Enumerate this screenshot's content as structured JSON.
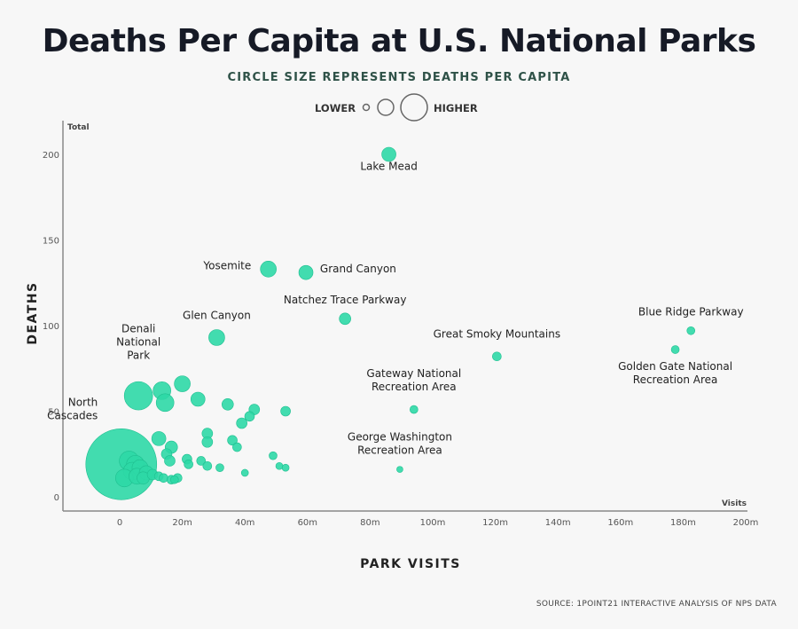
{
  "chart_data": {
    "type": "scatter",
    "title": "Deaths Per Capita at U.S. National Parks",
    "subtitle": "CIRCLE SIZE REPRESENTS DEATHS PER CAPITA",
    "legend": {
      "low": "LOWER",
      "high": "HIGHER"
    },
    "xlabel": "PARK VISITS",
    "ylabel": "DEATHS",
    "x_axis_unit_label": "Visits",
    "y_axis_unit_label": "Total",
    "xlim": [
      -18,
      200
    ],
    "ylim": [
      -8,
      218
    ],
    "x_ticks": [
      {
        "v": 0,
        "t": "0"
      },
      {
        "v": 20,
        "t": "20m"
      },
      {
        "v": 40,
        "t": "40m"
      },
      {
        "v": 60,
        "t": "60m"
      },
      {
        "v": 80,
        "t": "80m"
      },
      {
        "v": 100,
        "t": "100m"
      },
      {
        "v": 120,
        "t": "120m"
      },
      {
        "v": 140,
        "t": "140m"
      },
      {
        "v": 160,
        "t": "160m"
      },
      {
        "v": 180,
        "t": "180m"
      },
      {
        "v": 200,
        "t": "200m"
      }
    ],
    "y_ticks": [
      {
        "v": 0,
        "t": "0"
      },
      {
        "v": 50,
        "t": "50"
      },
      {
        "v": 100,
        "t": "100"
      },
      {
        "v": 150,
        "t": "150"
      },
      {
        "v": 200,
        "t": "200"
      }
    ],
    "color": "#2ed8a6",
    "points": [
      {
        "x": 86.0,
        "y": 200,
        "r": 8,
        "label": "Lake Mead",
        "lx": 86,
        "ly": 191,
        "anchor": "middle"
      },
      {
        "x": 47.5,
        "y": 133,
        "r": 9,
        "label": "Yosemite",
        "lx": 42,
        "ly": 133,
        "anchor": "end"
      },
      {
        "x": 59.5,
        "y": 131,
        "r": 8,
        "label": "Grand Canyon",
        "lx": 64,
        "ly": 131,
        "anchor": "start"
      },
      {
        "x": 72.0,
        "y": 104,
        "r": 6.5,
        "label": "Natchez Trace Parkway",
        "lx": 72,
        "ly": 113,
        "anchor": "middle"
      },
      {
        "x": 31.0,
        "y": 93,
        "r": 9,
        "label": "Glen Canyon",
        "lx": 31,
        "ly": 104,
        "anchor": "middle"
      },
      {
        "x": 120.5,
        "y": 82,
        "r": 5,
        "label": "Great Smoky Mountains",
        "lx": 120.5,
        "ly": 93,
        "anchor": "middle"
      },
      {
        "x": 182.5,
        "y": 97,
        "r": 4.5,
        "label": "Blue Ridge Parkway",
        "lx": 182.5,
        "ly": 106,
        "anchor": "middle"
      },
      {
        "x": 177.5,
        "y": 86,
        "r": 4.5,
        "label": "Golden Gate National|Recreation Area",
        "lx": 177.5,
        "ly": 74,
        "anchor": "middle"
      },
      {
        "x": 94.0,
        "y": 51,
        "r": 4.5,
        "label": "Gateway National|Recreation Area",
        "lx": 94,
        "ly": 70,
        "anchor": "middle"
      },
      {
        "x": 89.5,
        "y": 16,
        "r": 3.5,
        "label": "George Washington|Recreation Area",
        "lx": 89.5,
        "ly": 33,
        "anchor": "middle"
      },
      {
        "x": 6.0,
        "y": 59,
        "r": 16,
        "label": "Denali|National|Park",
        "lx": 6,
        "ly": 96,
        "anchor": "middle"
      },
      {
        "x": 0.5,
        "y": 19,
        "r": 40,
        "label": "North|Cascades",
        "lx": -7,
        "ly": 53,
        "anchor": "end"
      },
      {
        "x": 13.5,
        "y": 62,
        "r": 10,
        "label": ""
      },
      {
        "x": 20.0,
        "y": 66,
        "r": 9,
        "label": ""
      },
      {
        "x": 14.5,
        "y": 55,
        "r": 10,
        "label": ""
      },
      {
        "x": 25.0,
        "y": 57,
        "r": 8,
        "label": ""
      },
      {
        "x": 34.5,
        "y": 54,
        "r": 6.5,
        "label": ""
      },
      {
        "x": 43.0,
        "y": 51,
        "r": 6,
        "label": ""
      },
      {
        "x": 41.5,
        "y": 47,
        "r": 5.5,
        "label": ""
      },
      {
        "x": 39.0,
        "y": 43,
        "r": 6,
        "label": ""
      },
      {
        "x": 53.0,
        "y": 50,
        "r": 5.5,
        "label": ""
      },
      {
        "x": 28.0,
        "y": 37,
        "r": 6,
        "label": ""
      },
      {
        "x": 28.0,
        "y": 32,
        "r": 6,
        "label": ""
      },
      {
        "x": 12.5,
        "y": 34,
        "r": 8,
        "label": ""
      },
      {
        "x": 16.5,
        "y": 29,
        "r": 7,
        "label": ""
      },
      {
        "x": 15.0,
        "y": 25,
        "r": 6,
        "label": ""
      },
      {
        "x": 16.0,
        "y": 21,
        "r": 6,
        "label": ""
      },
      {
        "x": 36.0,
        "y": 33,
        "r": 5.5,
        "label": ""
      },
      {
        "x": 37.5,
        "y": 29,
        "r": 5,
        "label": ""
      },
      {
        "x": 49.0,
        "y": 24,
        "r": 4.5,
        "label": ""
      },
      {
        "x": 21.5,
        "y": 22,
        "r": 5.5,
        "label": ""
      },
      {
        "x": 22.0,
        "y": 19,
        "r": 5,
        "label": ""
      },
      {
        "x": 26.0,
        "y": 21,
        "r": 5,
        "label": ""
      },
      {
        "x": 28.0,
        "y": 18,
        "r": 5,
        "label": ""
      },
      {
        "x": 32.0,
        "y": 17,
        "r": 4.5,
        "label": ""
      },
      {
        "x": 51.0,
        "y": 18,
        "r": 4,
        "label": ""
      },
      {
        "x": 53.0,
        "y": 17,
        "r": 4,
        "label": ""
      },
      {
        "x": 40.0,
        "y": 14,
        "r": 4,
        "label": ""
      },
      {
        "x": 3.0,
        "y": 21,
        "r": 11,
        "label": ""
      },
      {
        "x": 5.0,
        "y": 19,
        "r": 10,
        "label": ""
      },
      {
        "x": 6.5,
        "y": 17,
        "r": 9,
        "label": ""
      },
      {
        "x": 4.0,
        "y": 15,
        "r": 10,
        "label": ""
      },
      {
        "x": 1.5,
        "y": 11,
        "r": 10,
        "label": ""
      },
      {
        "x": 5.5,
        "y": 12,
        "r": 9,
        "label": ""
      },
      {
        "x": 8.5,
        "y": 14,
        "r": 8,
        "label": ""
      },
      {
        "x": 7.5,
        "y": 11,
        "r": 7,
        "label": ""
      },
      {
        "x": 10.5,
        "y": 13,
        "r": 6,
        "label": ""
      },
      {
        "x": 12.5,
        "y": 12,
        "r": 5,
        "label": ""
      },
      {
        "x": 14.0,
        "y": 11,
        "r": 5,
        "label": ""
      },
      {
        "x": 16.5,
        "y": 10,
        "r": 5,
        "label": ""
      },
      {
        "x": 18.5,
        "y": 11,
        "r": 5,
        "label": ""
      },
      {
        "x": 17.5,
        "y": 10,
        "r": 4.5,
        "label": ""
      }
    ]
  },
  "source": "SOURCE: 1POINT21 INTERACTIVE ANALYSIS OF NPS DATA"
}
